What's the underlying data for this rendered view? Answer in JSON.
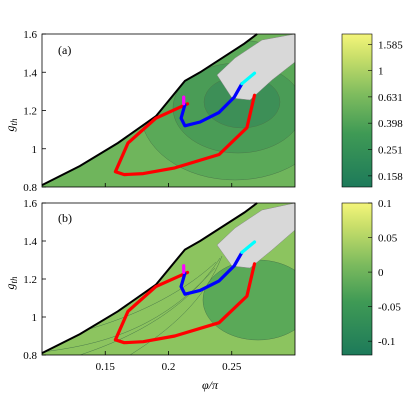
{
  "chart_data": [
    {
      "type": "heatmap",
      "panel_label": "(a)",
      "xlabel": "",
      "ylabel": "g_th",
      "xlim": [
        0.1,
        0.3
      ],
      "ylim": [
        0.8,
        1.6
      ],
      "xticks": [
        0.15,
        0.2,
        0.25
      ],
      "yticks": [
        0.8,
        1.0,
        1.2,
        1.4,
        1.6
      ],
      "colorbar": {
        "scale": "log",
        "tick_labels": [
          "1.585",
          "1",
          "0.631",
          "0.398",
          "0.251",
          "0.158"
        ],
        "range": [
          0.13,
          1.9
        ]
      },
      "boundary_curve": {
        "color": "#000000",
        "points": [
          [
            0.1,
            0.81
          ],
          [
            0.13,
            0.91
          ],
          [
            0.16,
            1.03
          ],
          [
            0.19,
            1.17
          ],
          [
            0.213,
            1.355
          ],
          [
            0.225,
            1.4
          ],
          [
            0.26,
            1.55
          ],
          [
            0.27,
            1.6
          ]
        ]
      },
      "curves": [
        {
          "color": "#ff0000",
          "points": [
            [
              0.215,
              1.235
            ],
            [
              0.19,
              1.16
            ],
            [
              0.168,
              1.03
            ],
            [
              0.158,
              0.88
            ],
            [
              0.165,
              0.865
            ],
            [
              0.18,
              0.87
            ],
            [
              0.205,
              0.9
            ],
            [
              0.24,
              0.97
            ],
            [
              0.262,
              1.11
            ],
            [
              0.268,
              1.28
            ]
          ]
        },
        {
          "color": "#0000ff",
          "points": [
            [
              0.213,
              1.23
            ],
            [
              0.21,
              1.16
            ],
            [
              0.213,
              1.12
            ],
            [
              0.225,
              1.14
            ],
            [
              0.24,
              1.19
            ],
            [
              0.252,
              1.27
            ],
            [
              0.258,
              1.34
            ]
          ]
        },
        {
          "color": "#00ffff",
          "points": [
            [
              0.258,
              1.34
            ],
            [
              0.268,
              1.395
            ]
          ]
        },
        {
          "color": "#ff00ff",
          "points": [
            [
              0.212,
              1.235
            ],
            [
              0.212,
              1.27
            ]
          ]
        }
      ]
    },
    {
      "type": "heatmap",
      "panel_label": "(b)",
      "xlabel": "φ/π",
      "ylabel": "g_th",
      "xlim": [
        0.1,
        0.3
      ],
      "ylim": [
        0.8,
        1.6
      ],
      "xticks": [
        0.15,
        0.2,
        0.25
      ],
      "yticks": [
        0.8,
        1.0,
        1.2,
        1.4,
        1.6
      ],
      "colorbar": {
        "scale": "linear",
        "tick_labels": [
          "0.1",
          "0.05",
          "0",
          "-0.05",
          "-0.1"
        ],
        "range": [
          -0.12,
          0.1
        ]
      },
      "boundary_curve": {
        "color": "#000000",
        "points": [
          [
            0.1,
            0.81
          ],
          [
            0.13,
            0.91
          ],
          [
            0.16,
            1.03
          ],
          [
            0.19,
            1.17
          ],
          [
            0.213,
            1.355
          ],
          [
            0.225,
            1.4
          ],
          [
            0.26,
            1.55
          ],
          [
            0.27,
            1.6
          ]
        ]
      },
      "curves": [
        {
          "color": "#ff0000",
          "points": [
            [
              0.215,
              1.235
            ],
            [
              0.19,
              1.16
            ],
            [
              0.168,
              1.03
            ],
            [
              0.158,
              0.88
            ],
            [
              0.165,
              0.865
            ],
            [
              0.18,
              0.87
            ],
            [
              0.205,
              0.9
            ],
            [
              0.24,
              0.97
            ],
            [
              0.262,
              1.11
            ],
            [
              0.268,
              1.28
            ]
          ]
        },
        {
          "color": "#0000ff",
          "points": [
            [
              0.213,
              1.23
            ],
            [
              0.21,
              1.16
            ],
            [
              0.213,
              1.12
            ],
            [
              0.225,
              1.14
            ],
            [
              0.24,
              1.19
            ],
            [
              0.252,
              1.27
            ],
            [
              0.258,
              1.34
            ]
          ]
        },
        {
          "color": "#00ffff",
          "points": [
            [
              0.258,
              1.34
            ],
            [
              0.268,
              1.395
            ]
          ]
        },
        {
          "color": "#ff00ff",
          "points": [
            [
              0.212,
              1.235
            ],
            [
              0.212,
              1.27
            ]
          ]
        }
      ]
    }
  ]
}
